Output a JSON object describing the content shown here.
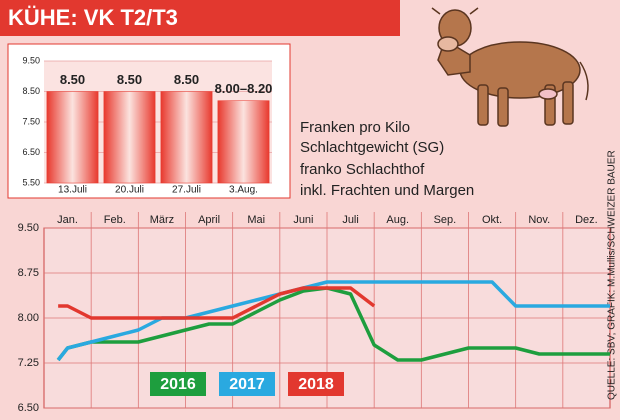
{
  "title": "KÜHE: VK T2/T3",
  "description": [
    "Franken pro Kilo",
    "Schlachtgewicht (SG)",
    "franko Schlachthof",
    "inkl. Frachten und Margen"
  ],
  "source": "QUELLE: SBV; GRAFIK: M.Mullis/SCHWEIZER BAUER",
  "chart_data": [
    {
      "type": "bar",
      "categories": [
        "13.Juli",
        "20.Juli",
        "27.Juli",
        "3.Aug."
      ],
      "values": [
        8.5,
        8.5,
        8.5,
        8.2
      ],
      "value_labels": [
        "8.50",
        "8.50",
        "8.50",
        "8.00–8.20"
      ],
      "color": "#e8392e",
      "ylim": [
        5.5,
        9.5
      ],
      "yticks": [
        {
          "value": 5.5,
          "label": "5.50"
        },
        {
          "value": 6.5,
          "label": "6.50"
        },
        {
          "value": 7.5,
          "label": "7.50"
        },
        {
          "value": 8.5,
          "label": "8.50"
        },
        {
          "value": 9.5,
          "label": "9.50"
        }
      ],
      "grid": true
    },
    {
      "type": "line",
      "categories": [
        "Jan.",
        "Feb.",
        "März",
        "April",
        "Mai",
        "Juni",
        "Juli",
        "Aug.",
        "Sep.",
        "Okt.",
        "Nov.",
        "Dez."
      ],
      "x": [
        0.3,
        0.5,
        1,
        1.5,
        2,
        2.5,
        3,
        3.5,
        4,
        4.5,
        5,
        5.5,
        6,
        6.5,
        7,
        7.5,
        8,
        8.5,
        9,
        9.5,
        10,
        10.5,
        11,
        11.5,
        12
      ],
      "xlim": [
        0,
        12
      ],
      "series": [
        {
          "name": "2016",
          "color": "#1e9e3e",
          "values": [
            7.3,
            7.5,
            7.6,
            7.6,
            7.6,
            7.7,
            7.8,
            7.9,
            7.9,
            8.1,
            8.3,
            8.45,
            8.5,
            8.4,
            7.55,
            7.3,
            7.3,
            7.4,
            7.5,
            7.5,
            7.5,
            7.4,
            7.4,
            7.4,
            7.4
          ]
        },
        {
          "name": "2017",
          "color": "#2aa9e0",
          "values": [
            7.3,
            7.5,
            7.6,
            7.7,
            7.8,
            8.0,
            8.0,
            8.1,
            8.2,
            8.3,
            8.4,
            8.5,
            8.6,
            8.6,
            8.6,
            8.6,
            8.6,
            8.6,
            8.6,
            8.6,
            8.2,
            8.2,
            8.2,
            8.2,
            8.2
          ]
        },
        {
          "name": "2018",
          "color": "#e2382f",
          "values": [
            8.2,
            8.2,
            8.0,
            8.0,
            8.0,
            8.0,
            8.0,
            8.0,
            8.0,
            8.2,
            8.4,
            8.5,
            8.5,
            8.5,
            8.2,
            null,
            null,
            null,
            null,
            null,
            null,
            null,
            null,
            null,
            null
          ]
        }
      ],
      "ylim": [
        6.5,
        9.5
      ],
      "yticks": [
        {
          "value": 6.5,
          "label": "6.50"
        },
        {
          "value": 7.25,
          "label": "7.25"
        },
        {
          "value": 8.0,
          "label": "8.00"
        },
        {
          "value": 8.75,
          "label": "8.75"
        },
        {
          "value": 9.5,
          "label": "9.50"
        }
      ],
      "grid": true
    }
  ]
}
